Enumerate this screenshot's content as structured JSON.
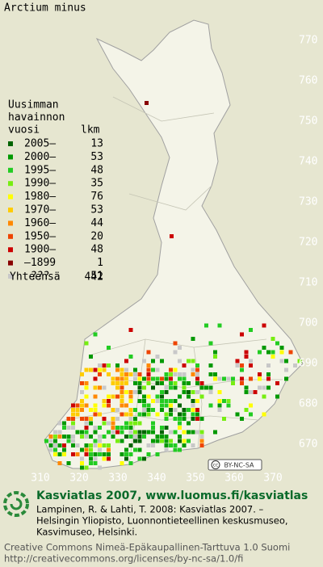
{
  "title": "Arctium minus",
  "legend": {
    "heading": [
      "Uusimman",
      "havainnon",
      "vuosi"
    ],
    "count_heading": "lkm",
    "rows": [
      {
        "label": "2005–",
        "count": 13,
        "color": "#006400"
      },
      {
        "label": "2000–",
        "count": 53,
        "color": "#009900"
      },
      {
        "label": "1995–",
        "count": 48,
        "color": "#22cc22"
      },
      {
        "label": "1990–",
        "count": 35,
        "color": "#77ee11"
      },
      {
        "label": "1980–",
        "count": 76,
        "color": "#ffff00"
      },
      {
        "label": "1970–",
        "count": 53,
        "color": "#ffcc00"
      },
      {
        "label": "1960–",
        "count": 44,
        "color": "#ff8800"
      },
      {
        "label": "1950–",
        "count": 20,
        "color": "#ee4400"
      },
      {
        "label": "1900–",
        "count": 48,
        "color": "#cc0000"
      },
      {
        "label": "–1899",
        "count": 1,
        "color": "#880000"
      },
      {
        "label": "???",
        "count": 51,
        "color": "#c8c8c8"
      }
    ],
    "total_label": "Yhteensä",
    "total": 442
  },
  "y_axis": {
    "ticks": [
      770,
      760,
      750,
      740,
      730,
      720,
      710,
      700,
      690,
      680,
      670
    ]
  },
  "x_axis": {
    "ticks": [
      310,
      320,
      330,
      340,
      350,
      360,
      370
    ]
  },
  "badge": "BY-NC-SA",
  "footer": {
    "title": "Kasviatlas 2007, www.luomus.fi/kasviatlas",
    "citation": [
      "Lampinen, R. & Lahti, T. 2008: Kasviatlas 2007. –",
      "Helsingin Yliopisto, Luonnontieteellinen keskusmuseo,",
      "Kasvimuseo, Helsinki."
    ],
    "license": [
      "Creative Commons Nimeä-Epäkaupallinen-Tarttuva 1.0 Suomi",
      "http://creativecommons.org/licenses/by-nc-sa/1.0/fi"
    ]
  }
}
